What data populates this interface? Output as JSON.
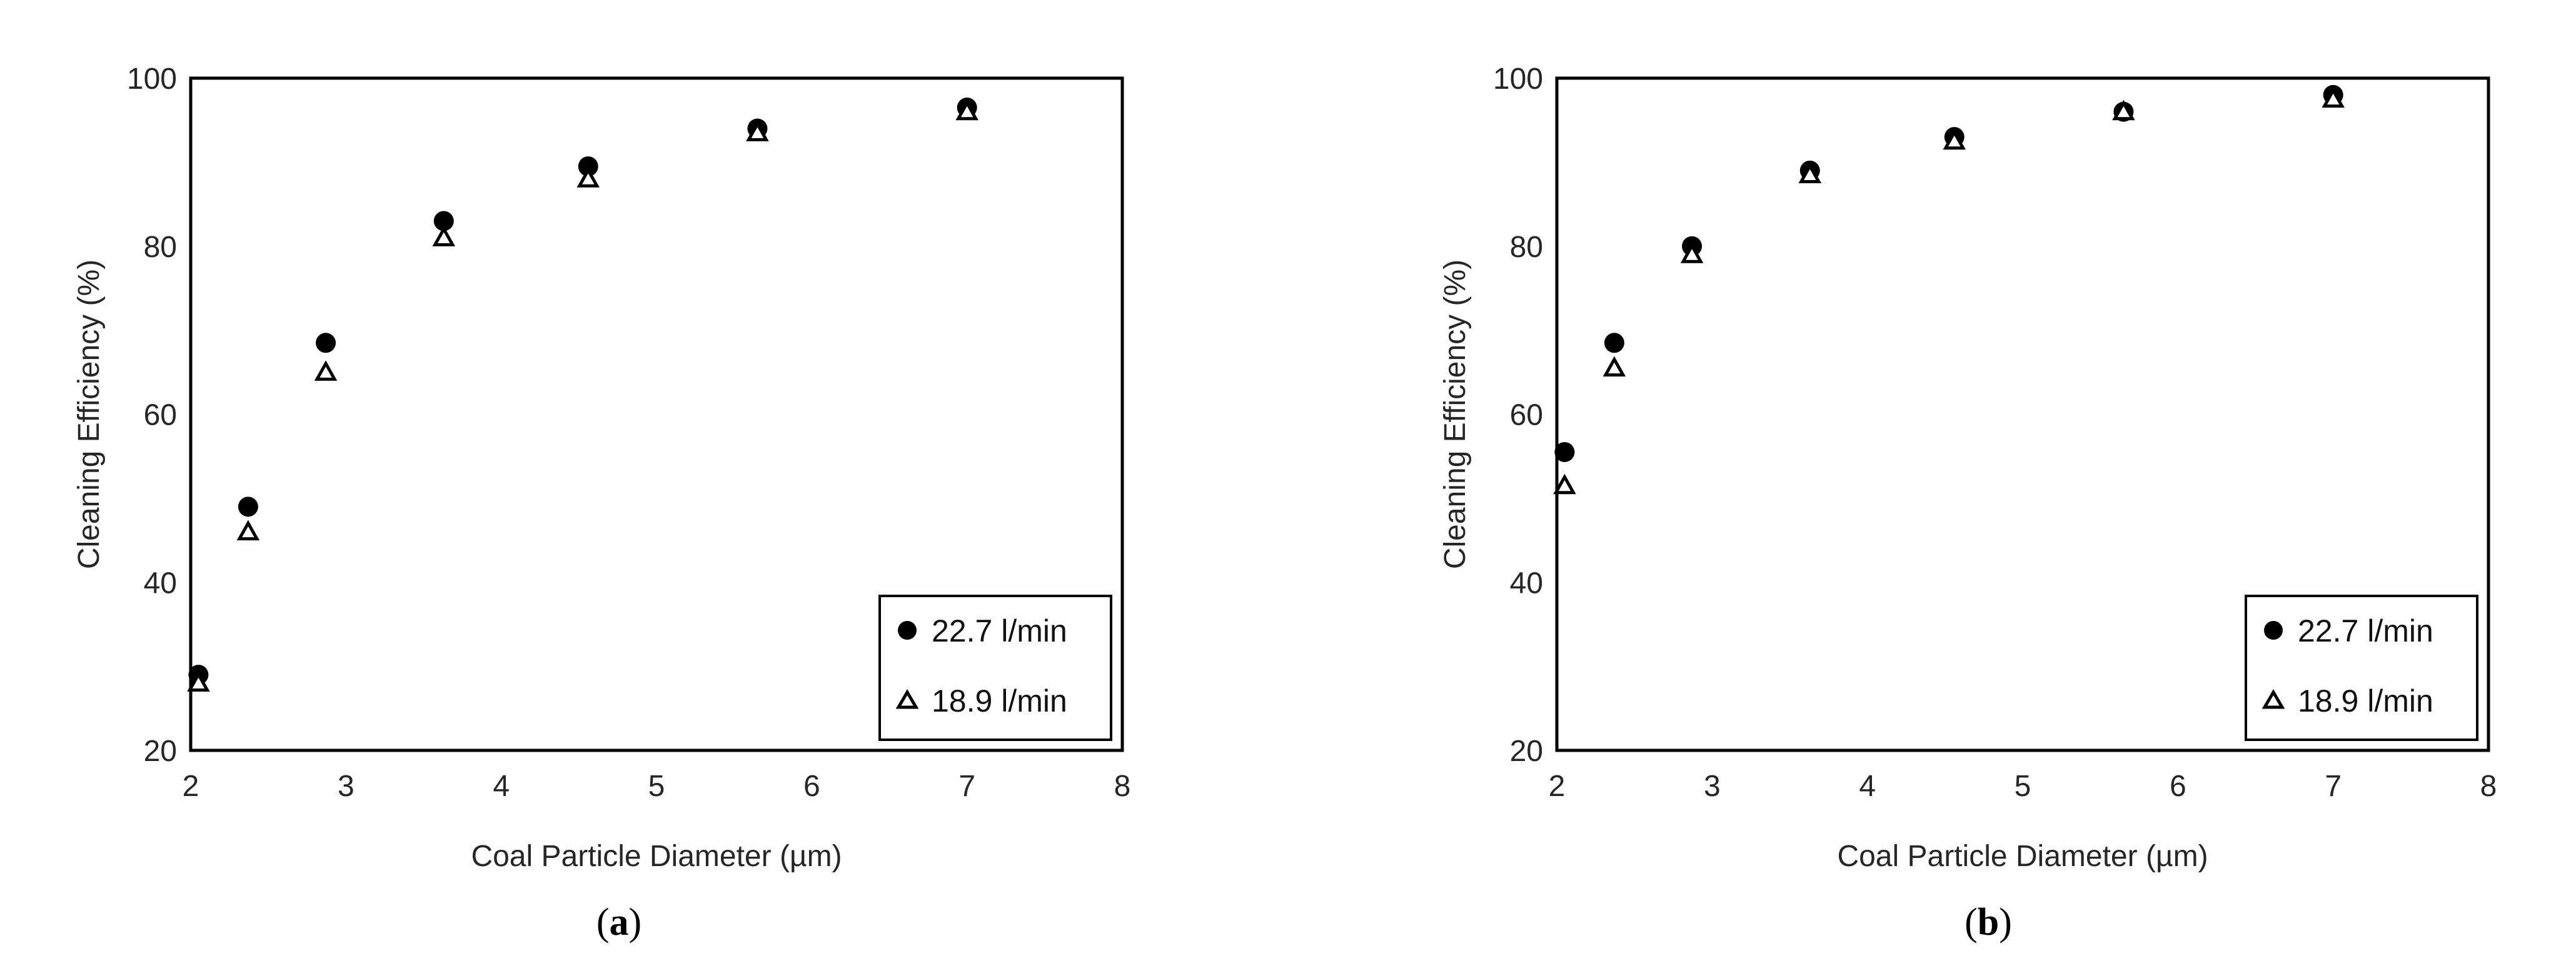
{
  "chart_data": [
    {
      "type": "scatter",
      "panel_label": "(a)",
      "panel_letter": "a",
      "xlabel": "Coal Particle Diameter (µm)",
      "ylabel": "Cleaning Efficiency (%)",
      "xlim": [
        2,
        8
      ],
      "ylim": [
        20,
        100
      ],
      "xticks": [
        2,
        3,
        4,
        5,
        6,
        7,
        8
      ],
      "yticks": [
        20,
        40,
        60,
        80,
        100
      ],
      "grid": false,
      "legend_position": "bottom-right",
      "series": [
        {
          "name": "22.7 l/min",
          "marker": "filled-circle",
          "color": "#000000",
          "x": [
            2.05,
            2.37,
            2.87,
            3.63,
            4.56,
            5.65,
            7.0
          ],
          "y": [
            29.0,
            49.0,
            68.5,
            83.0,
            89.5,
            94.0,
            96.5
          ]
        },
        {
          "name": "18.9 l/min",
          "marker": "open-triangle",
          "color": "#000000",
          "x": [
            2.05,
            2.37,
            2.87,
            3.63,
            4.56,
            5.65,
            7.0
          ],
          "y": [
            28.0,
            46.0,
            65.0,
            81.0,
            88.0,
            93.5,
            96.0
          ]
        }
      ]
    },
    {
      "type": "scatter",
      "panel_label": "(b)",
      "panel_letter": "b",
      "xlabel": "Coal Particle Diameter (µm)",
      "ylabel": "Cleaning Efficiency (%)",
      "xlim": [
        2,
        8
      ],
      "ylim": [
        20,
        100
      ],
      "xticks": [
        2,
        3,
        4,
        5,
        6,
        7,
        8
      ],
      "yticks": [
        20,
        40,
        60,
        80,
        100
      ],
      "grid": false,
      "legend_position": "bottom-right",
      "series": [
        {
          "name": "22.7 l/min",
          "marker": "filled-circle",
          "color": "#000000",
          "x": [
            2.05,
            2.37,
            2.87,
            3.63,
            4.56,
            5.65,
            7.0
          ],
          "y": [
            55.5,
            68.5,
            80.0,
            89.0,
            93.0,
            96.0,
            98.0
          ]
        },
        {
          "name": "18.9 l/min",
          "marker": "open-triangle",
          "color": "#000000",
          "x": [
            2.05,
            2.37,
            2.87,
            3.63,
            4.56,
            5.65,
            7.0
          ],
          "y": [
            51.5,
            65.5,
            79.0,
            88.5,
            92.5,
            96.0,
            97.5
          ]
        }
      ]
    }
  ]
}
